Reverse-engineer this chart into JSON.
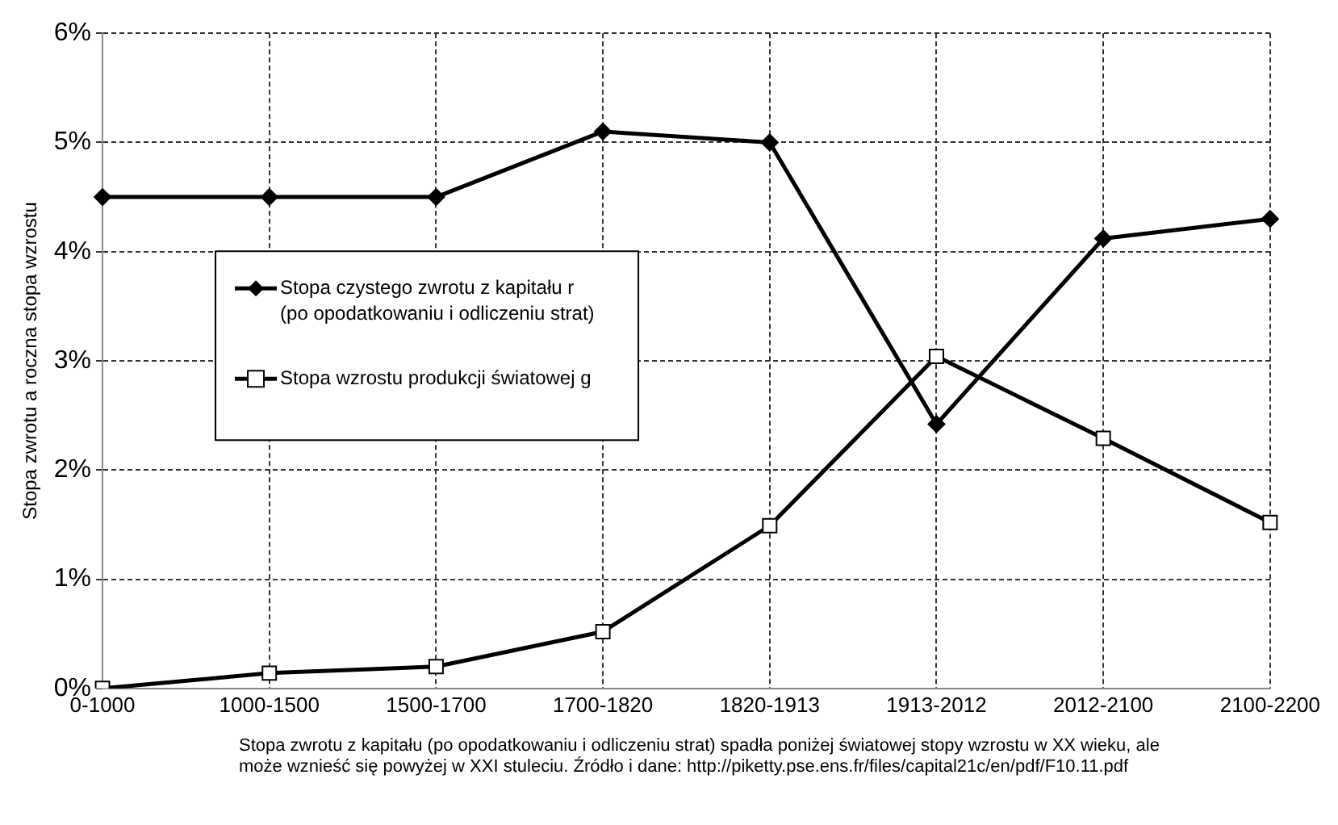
{
  "chart_data": {
    "type": "line",
    "ylabel": "Stopa zwrotu a roczna stopa wzrostu",
    "categories": [
      "0-1000",
      "1000-1500",
      "1500-1700",
      "1700-1820",
      "1820-1913",
      "1913-2012",
      "2012-2100",
      "2100-2200"
    ],
    "series": [
      {
        "name": "Stopa czystego zwrotu z kapitału r\n(po opodatkowaniu i odliczeniu strat)",
        "color": "#000000",
        "marker": "diamond",
        "values": [
          4.5,
          4.5,
          4.5,
          5.1,
          5.0,
          2.42,
          4.12,
          4.3
        ]
      },
      {
        "name": "Stopa wzrostu produkcji światowej g",
        "color": "#000000",
        "marker": "square",
        "values": [
          0.0,
          0.14,
          0.2,
          0.52,
          1.49,
          3.04,
          2.29,
          1.52
        ]
      }
    ],
    "ylim": [
      0,
      6
    ],
    "yticks": [
      {
        "value": 0,
        "label": "0%"
      },
      {
        "value": 1,
        "label": "1%"
      },
      {
        "value": 2,
        "label": "2%"
      },
      {
        "value": 3,
        "label": "3%"
      },
      {
        "value": 4,
        "label": "4%"
      },
      {
        "value": 5,
        "label": "5%"
      },
      {
        "value": 6,
        "label": "6%"
      }
    ],
    "grid": true,
    "legend": "left",
    "line_style": "solid",
    "annotations": [
      "Stopa zwrotu z kapitału (po opodatkowaniu i odliczeniu strat) spadła poniżej światowej stopy wzrostu w XX wieku, ale może wznieść się powyżej w XXI stuleciu. Źródło i dane: http://piketty.pse.ens.fr/files/capital21c/en/pdf/F10.11.pdf"
    ]
  }
}
